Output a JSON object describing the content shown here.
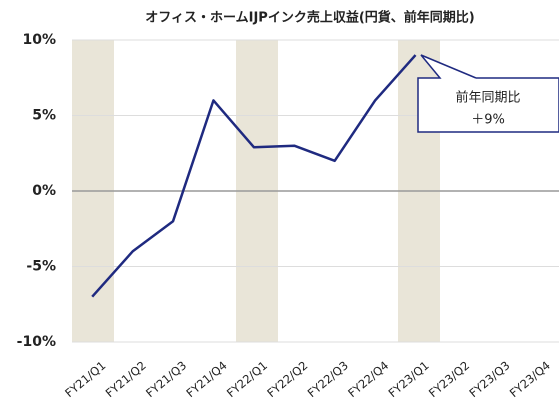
{
  "chart_data": {
    "type": "line",
    "title": "オフィス・ホームIJPインク売上収益(円貨、前年同期比)",
    "categories": [
      "FY21/Q1",
      "FY21/Q2",
      "FY21/Q3",
      "FY21/Q4",
      "FY22/Q1",
      "FY22/Q2",
      "FY22/Q3",
      "FY22/Q4",
      "FY23/Q1",
      "FY23/Q2",
      "FY23/Q3",
      "FY23/Q4"
    ],
    "series": [
      {
        "name": "前年同期比",
        "color": "#1f2a80",
        "values": [
          -7,
          -4,
          -2,
          6,
          2.9,
          3,
          2,
          6,
          9,
          null,
          null,
          null
        ]
      }
    ],
    "ylim": [
      -10,
      10
    ],
    "yticks": [
      {
        "value": -10,
        "label": "-10%"
      },
      {
        "value": -5,
        "label": "-5%"
      },
      {
        "value": 0,
        "label": "0%"
      },
      {
        "value": 5,
        "label": "5%"
      },
      {
        "value": 10,
        "label": "10%"
      }
    ],
    "annotation": [
      "前年同期比",
      "＋9%"
    ]
  }
}
